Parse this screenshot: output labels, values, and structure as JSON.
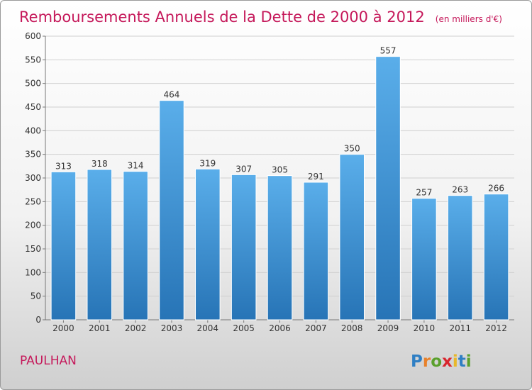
{
  "chart_data": {
    "type": "bar",
    "title": "Remboursements Annuels de la Dette de 2000 à 2012",
    "subtitle": "(en milliers d'€)",
    "categories": [
      "2000",
      "2001",
      "2002",
      "2003",
      "2004",
      "2005",
      "2006",
      "2007",
      "2008",
      "2009",
      "2010",
      "2011",
      "2012"
    ],
    "values": [
      313,
      318,
      314,
      464,
      319,
      307,
      305,
      291,
      350,
      557,
      257,
      263,
      266
    ],
    "ylim": [
      0,
      600
    ],
    "yticks": [
      0,
      50,
      100,
      150,
      200,
      250,
      300,
      350,
      400,
      450,
      500,
      550,
      600
    ],
    "xlabel": "",
    "ylabel": "",
    "grid": true,
    "bar_color": "#3a8fd4"
  },
  "commune": "PAULHAN",
  "logo": {
    "letters": [
      "P",
      "r",
      "o",
      "x",
      "i",
      "t",
      "i"
    ],
    "colors": [
      "#2f7fc4",
      "#e8812a",
      "#5aa02c",
      "#d8262e",
      "#e8b82a",
      "#2f7fc4",
      "#5aa02c"
    ]
  }
}
